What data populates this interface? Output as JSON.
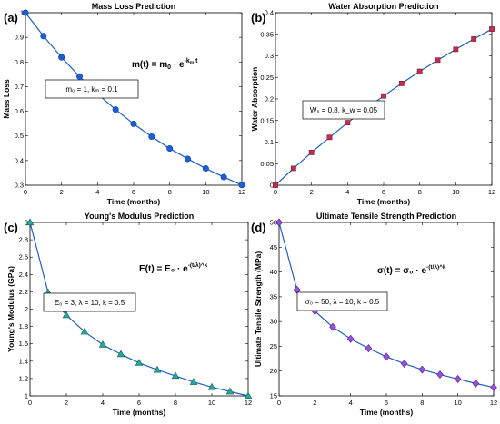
{
  "chart_data": [
    {
      "panel_label": "(a)",
      "type": "line",
      "title": "Mass Loss Prediction",
      "xlabel": "Time (months)",
      "ylabel": "Mass Loss",
      "xlim": [
        0,
        12
      ],
      "ylim": [
        0.3,
        1.0
      ],
      "xticks": [
        0,
        2,
        4,
        6,
        8,
        10,
        12
      ],
      "yticks": [
        0.3,
        0.4,
        0.5,
        0.6,
        0.7,
        0.8,
        0.9,
        1
      ],
      "ytick_labels": [
        "0.3",
        "0.4",
        "0.5",
        "0.6",
        "0.7",
        "0.8",
        "0.9",
        "1"
      ],
      "grid": false,
      "series": [
        {
          "marker": "circle",
          "line_color": "#1f5fbf",
          "marker_fill": "#1a5fd6",
          "marker_stroke": "#0b3b9a",
          "x": [
            0,
            1,
            2,
            3,
            4,
            5,
            6,
            7,
            8,
            9,
            10,
            11,
            12
          ],
          "y": [
            1.0,
            0.905,
            0.819,
            0.741,
            0.67,
            0.607,
            0.549,
            0.497,
            0.449,
            0.407,
            0.368,
            0.333,
            0.301
          ]
        }
      ],
      "annotations": {
        "formula_main": "m(t) = m",
        "formula_sub": "0",
        "formula_mid": " · e",
        "formula_sup": "-k",
        "formula_sup_sub": "m",
        "formula_sup_tail": " t",
        "params_line": "m₀ = 1,  kₘ = 0.1"
      }
    },
    {
      "panel_label": "(b)",
      "type": "line",
      "title": "Water Absorption Prediction",
      "xlabel": "Time (months)",
      "ylabel": "Water Absorption",
      "xlim": [
        0,
        12
      ],
      "ylim": [
        0,
        0.4
      ],
      "xticks": [
        0,
        2,
        4,
        6,
        8,
        10,
        12
      ],
      "yticks": [
        0,
        0.05,
        0.1,
        0.15,
        0.2,
        0.25,
        0.3,
        0.35,
        0.4
      ],
      "ytick_labels": [
        "0",
        "0.05",
        "0.1",
        "0.15",
        "0.2",
        "0.25",
        "0.3",
        "0.35",
        "0.4"
      ],
      "grid": false,
      "series": [
        {
          "marker": "square",
          "line_color": "#1f5fbf",
          "marker_fill": "#c0304e",
          "marker_stroke": "#7a1a2e",
          "x": [
            0,
            1,
            2,
            3,
            4,
            5,
            6,
            7,
            8,
            9,
            10,
            11,
            12
          ],
          "y": [
            0.0,
            0.039,
            0.076,
            0.111,
            0.145,
            0.177,
            0.207,
            0.236,
            0.264,
            0.29,
            0.315,
            0.339,
            0.362
          ]
        }
      ],
      "annotations": {
        "params_line": "Wₛ = 0.8,  k_w = 0.05"
      }
    },
    {
      "panel_label": "(c)",
      "type": "line",
      "title": "Young's Modulus Prediction",
      "xlabel": "Time (months)",
      "ylabel": "Young's Modulus (GPa)",
      "xlim": [
        0,
        12
      ],
      "ylim": [
        1.0,
        3.0
      ],
      "xticks": [
        0,
        2,
        4,
        6,
        8,
        10,
        12
      ],
      "yticks": [
        1,
        1.2,
        1.4,
        1.6,
        1.8,
        2,
        2.2,
        2.4,
        2.6,
        2.8,
        3
      ],
      "ytick_labels": [
        "1",
        "1.2",
        "1.4",
        "1.6",
        "1.8",
        "2",
        "2.2",
        "2.4",
        "2.6",
        "2.8",
        "3"
      ],
      "grid": false,
      "series": [
        {
          "marker": "triangle",
          "line_color": "#1f5fbf",
          "marker_fill": "#2aa79b",
          "marker_stroke": "#145e57",
          "x": [
            0,
            1,
            2,
            3,
            4,
            5,
            6,
            7,
            8,
            9,
            10,
            11,
            12
          ],
          "y": [
            3.0,
            2.19,
            1.93,
            1.74,
            1.59,
            1.48,
            1.38,
            1.3,
            1.23,
            1.16,
            1.1,
            1.05,
            1.0
          ]
        }
      ],
      "annotations": {
        "formula_text": "E(t) = E₀ · e^-(t/λ)^k",
        "params_line": "E₀ = 3,  λ = 10,  k = 0.5"
      }
    },
    {
      "panel_label": "(d)",
      "type": "line",
      "title": "Ultimate Tensile Strength Prediction",
      "xlabel": "Time (months)",
      "ylabel": "Ultimate Tensile Strength (MPa)",
      "xlim": [
        0,
        12
      ],
      "ylim": [
        15,
        50
      ],
      "xticks": [
        0,
        2,
        4,
        6,
        8,
        10,
        12
      ],
      "yticks": [
        15,
        20,
        25,
        30,
        35,
        40,
        45,
        50
      ],
      "ytick_labels": [
        "15",
        "20",
        "25",
        "30",
        "35",
        "40",
        "45",
        "50"
      ],
      "grid": false,
      "series": [
        {
          "marker": "diamond",
          "line_color": "#1f5fbf",
          "marker_fill": "#9a4fe0",
          "marker_stroke": "#4b1f84",
          "x": [
            0,
            1,
            2,
            3,
            4,
            5,
            6,
            7,
            8,
            9,
            10,
            11,
            12
          ],
          "y": [
            50,
            36.4,
            32.1,
            28.9,
            26.5,
            24.6,
            22.9,
            21.5,
            20.3,
            19.3,
            18.4,
            17.5,
            16.7
          ]
        }
      ],
      "annotations": {
        "formula_text": "σ(t) = σ₀ · e^-(t/λ)^k",
        "params_line": "σ₀ = 50,  λ = 10,  k = 0.5"
      }
    }
  ]
}
